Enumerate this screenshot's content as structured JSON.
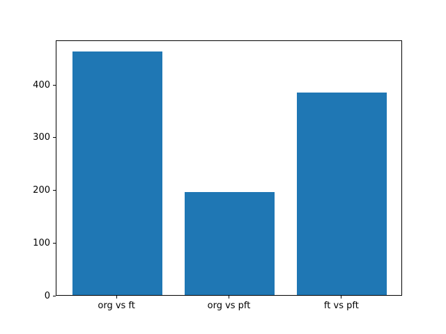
{
  "chart_data": {
    "type": "bar",
    "categories": [
      "org vs ft",
      "org vs pft",
      "ft vs pft"
    ],
    "values": [
      462,
      196,
      385
    ],
    "title": "",
    "xlabel": "",
    "ylabel": "",
    "ylim": [
      0,
      485
    ],
    "xlim": [
      -0.54,
      2.54
    ],
    "yticks": [
      0,
      100,
      200,
      300,
      400
    ],
    "bar_width_fraction": 0.8,
    "bar_color": "#1f77b4",
    "frame_color": "#000000",
    "tick_label_color": "#000000",
    "background": "#ffffff",
    "grid": false,
    "legend": null
  }
}
